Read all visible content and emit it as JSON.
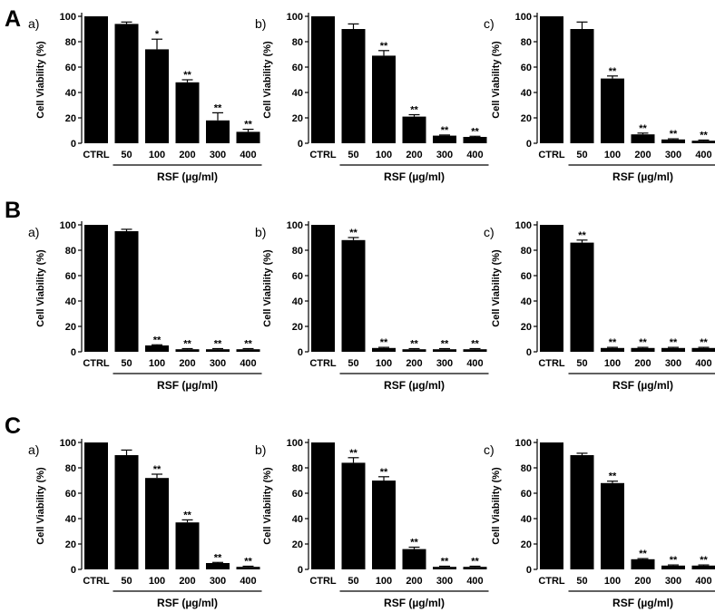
{
  "sections": [
    {
      "label": "A"
    },
    {
      "label": "B"
    },
    {
      "label": "C"
    }
  ],
  "chart_data": [
    {
      "type": "bar",
      "section": "A",
      "panel": "a)",
      "ylabel": "Cell Viability (%)",
      "xlabel": "RSF (µg/ml)",
      "categories": [
        "CTRL",
        "50",
        "100",
        "200",
        "300",
        "400"
      ],
      "values": [
        100,
        94,
        74,
        48,
        18,
        9
      ],
      "errors": [
        0,
        1.5,
        8,
        2,
        6,
        2
      ],
      "stars": [
        "",
        "",
        "*",
        "**",
        "**",
        "**"
      ],
      "ylim": [
        0,
        100
      ],
      "yticks": [
        0,
        20,
        40,
        60,
        80,
        100
      ]
    },
    {
      "type": "bar",
      "section": "A",
      "panel": "b)",
      "ylabel": "Cell Viability (%)",
      "xlabel": "RSF (µg/ml)",
      "categories": [
        "CTRL",
        "50",
        "100",
        "200",
        "300",
        "400"
      ],
      "values": [
        100,
        90,
        69,
        21,
        6,
        5
      ],
      "errors": [
        0,
        4,
        4,
        1.5,
        0.5,
        0.5
      ],
      "stars": [
        "",
        "",
        "**",
        "**",
        "**",
        "**"
      ],
      "ylim": [
        0,
        100
      ],
      "yticks": [
        0,
        20,
        40,
        60,
        80,
        100
      ]
    },
    {
      "type": "bar",
      "section": "A",
      "panel": "c)",
      "ylabel": "Cell Viability (%)",
      "xlabel": "RSF (µg/ml)",
      "categories": [
        "CTRL",
        "50",
        "100",
        "200",
        "300",
        "400"
      ],
      "values": [
        100,
        90,
        51,
        7,
        3,
        2
      ],
      "errors": [
        0,
        5.5,
        2,
        1,
        0.5,
        0.5
      ],
      "stars": [
        "",
        "",
        "**",
        "**",
        "**",
        "**"
      ],
      "ylim": [
        0,
        100
      ],
      "yticks": [
        0,
        20,
        40,
        60,
        80,
        100
      ]
    },
    {
      "type": "bar",
      "section": "B",
      "panel": "a)",
      "ylabel": "Cell Viability (%)",
      "xlabel": "RSF (µg/ml)",
      "categories": [
        "CTRL",
        "50",
        "100",
        "200",
        "300",
        "400"
      ],
      "values": [
        100,
        95,
        5,
        2,
        2,
        2
      ],
      "errors": [
        0,
        1.5,
        0.5,
        0.5,
        0.5,
        0.5
      ],
      "stars": [
        "",
        "",
        "**",
        "**",
        "**",
        "**"
      ],
      "ylim": [
        0,
        100
      ],
      "yticks": [
        0,
        20,
        40,
        60,
        80,
        100
      ]
    },
    {
      "type": "bar",
      "section": "B",
      "panel": "b)",
      "ylabel": "Cell Viability (%)",
      "xlabel": "RSF (µg/ml)",
      "categories": [
        "CTRL",
        "50",
        "100",
        "200",
        "300",
        "400"
      ],
      "values": [
        100,
        88,
        3,
        2,
        2,
        2
      ],
      "errors": [
        0,
        2,
        0.5,
        0.5,
        0.5,
        0.5
      ],
      "stars": [
        "",
        "**",
        "**",
        "**",
        "**",
        "**"
      ],
      "ylim": [
        0,
        100
      ],
      "yticks": [
        0,
        20,
        40,
        60,
        80,
        100
      ]
    },
    {
      "type": "bar",
      "section": "B",
      "panel": "c)",
      "ylabel": "Cell Viability (%)",
      "xlabel": "RSF (µg/ml)",
      "categories": [
        "CTRL",
        "50",
        "100",
        "200",
        "300",
        "400"
      ],
      "values": [
        100,
        86,
        3,
        3,
        3,
        3
      ],
      "errors": [
        0,
        2,
        0.5,
        0.5,
        0.5,
        0.5
      ],
      "stars": [
        "",
        "**",
        "**",
        "**",
        "**",
        "**"
      ],
      "ylim": [
        0,
        100
      ],
      "yticks": [
        0,
        20,
        40,
        60,
        80,
        100
      ]
    },
    {
      "type": "bar",
      "section": "C",
      "panel": "a)",
      "ylabel": "Cell Viability (%)",
      "xlabel": "RSF (µg/ml)",
      "categories": [
        "CTRL",
        "50",
        "100",
        "200",
        "300",
        "400"
      ],
      "values": [
        100,
        90,
        72,
        37,
        5,
        2
      ],
      "errors": [
        0,
        4,
        3,
        2,
        0.5,
        0.5
      ],
      "stars": [
        "",
        "",
        "**",
        "**",
        "**",
        "**"
      ],
      "ylim": [
        0,
        100
      ],
      "yticks": [
        0,
        20,
        40,
        60,
        80,
        100
      ]
    },
    {
      "type": "bar",
      "section": "C",
      "panel": "b)",
      "ylabel": "Cell Viability (%)",
      "xlabel": "RSF (µg/ml)",
      "categories": [
        "CTRL",
        "50",
        "100",
        "200",
        "300",
        "400"
      ],
      "values": [
        100,
        84,
        70,
        16,
        2,
        2
      ],
      "errors": [
        0,
        4,
        3,
        1.5,
        0.5,
        0.5
      ],
      "stars": [
        "",
        "**",
        "**",
        "**",
        "**",
        "**"
      ],
      "ylim": [
        0,
        100
      ],
      "yticks": [
        0,
        20,
        40,
        60,
        80,
        100
      ]
    },
    {
      "type": "bar",
      "section": "C",
      "panel": "c)",
      "ylabel": "Cell Viability (%)",
      "xlabel": "RSF (µg/ml)",
      "categories": [
        "CTRL",
        "50",
        "100",
        "200",
        "300",
        "400"
      ],
      "values": [
        100,
        90,
        68,
        8,
        3,
        3
      ],
      "errors": [
        0,
        1.5,
        1.5,
        0.5,
        0.5,
        0.5
      ],
      "stars": [
        "",
        "",
        "**",
        "**",
        "**",
        "**"
      ],
      "ylim": [
        0,
        100
      ],
      "yticks": [
        0,
        20,
        40,
        60,
        80,
        100
      ]
    }
  ]
}
